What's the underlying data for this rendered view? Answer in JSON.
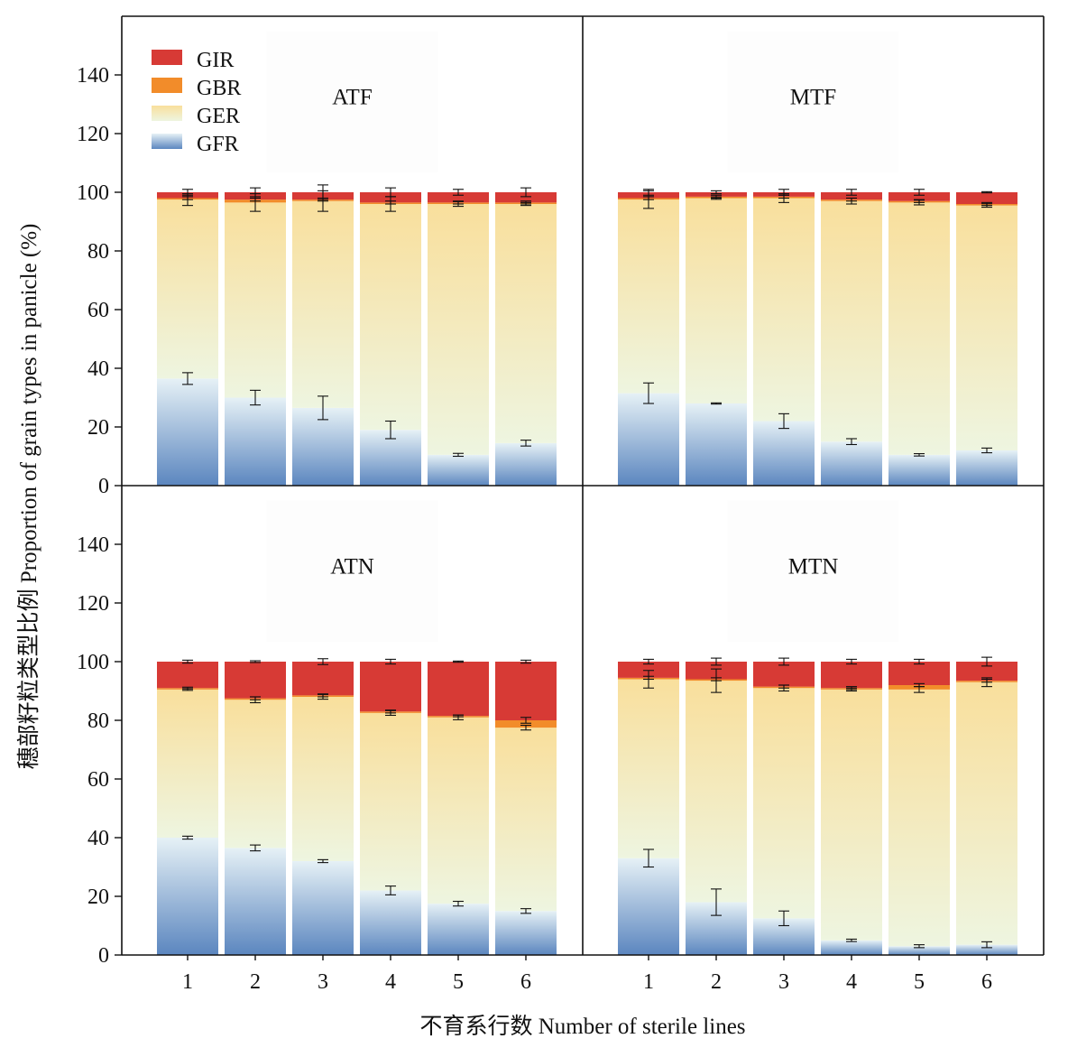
{
  "chart_data": {
    "type": "bar",
    "stacked": true,
    "ylabel": "穗部籽粒类型比例 Proportion of grain types in panicle (%)",
    "xlabel": "不育系行数 Number of sterile lines",
    "ylim": [
      0,
      160
    ],
    "yticks": [
      0,
      20,
      40,
      60,
      80,
      100,
      120,
      140
    ],
    "categories": [
      "1",
      "2",
      "3",
      "4",
      "5",
      "6"
    ],
    "legend": {
      "position": "top-left",
      "entries": [
        {
          "name": "GIR",
          "color": "#d73a35"
        },
        {
          "name": "GBR",
          "color": "#f28c2a"
        },
        {
          "name": "GER",
          "color": "#f7e3a8"
        },
        {
          "name": "GFR",
          "color": "#5b86bf"
        }
      ]
    },
    "colors": {
      "GFR_bottom": "#5b86bf",
      "GFR_top": "#e6f1f6",
      "GER_bottom": "#eef5e0",
      "GER_top": "#f9df9c",
      "GBR": "#f28c2a",
      "GIR": "#d73a35"
    },
    "panels": [
      {
        "title": "ATF",
        "series": [
          {
            "name": "GFR",
            "values": [
              36.5,
              30.0,
              26.5,
              19.0,
              10.5,
              14.5
            ],
            "errors": [
              2.0,
              2.5,
              4.0,
              3.0,
              0.5,
              1.0
            ]
          },
          {
            "name": "GER",
            "values": [
              61.0,
              66.5,
              70.5,
              77.0,
              85.5,
              81.5
            ],
            "errors": [
              2.0,
              3.0,
              3.5,
              2.5,
              0.8,
              0.5
            ]
          },
          {
            "name": "GBR",
            "values": [
              0.5,
              1.0,
              0.5,
              0.5,
              0.5,
              0.5
            ],
            "errors": [
              0.5,
              0.5,
              0.5,
              0.5,
              0.5,
              0.5
            ]
          },
          {
            "name": "GIR",
            "values": [
              2.0,
              2.5,
              2.5,
              3.5,
              3.5,
              3.5
            ],
            "errors": [
              1.0,
              1.5,
              2.5,
              1.5,
              1.0,
              1.5
            ]
          }
        ]
      },
      {
        "title": "MTF",
        "series": [
          {
            "name": "GFR",
            "values": [
              31.5,
              28.0,
              22.0,
              15.0,
              10.5,
              12.0
            ],
            "errors": [
              3.5,
              0.2,
              2.5,
              1.0,
              0.4,
              0.8
            ]
          },
          {
            "name": "GER",
            "values": [
              66.0,
              70.0,
              76.0,
              82.0,
              86.0,
              83.5
            ],
            "errors": [
              3.0,
              0.4,
              1.5,
              1.0,
              0.8,
              0.6
            ]
          },
          {
            "name": "GBR",
            "values": [
              0.5,
              0.5,
              0.5,
              0.5,
              0.5,
              0.5
            ],
            "errors": [
              0.5,
              0.5,
              0.5,
              0.5,
              0.5,
              0.5
            ]
          },
          {
            "name": "GIR",
            "values": [
              2.0,
              1.5,
              1.5,
              2.5,
              3.0,
              4.0
            ],
            "errors": [
              1.0,
              0.5,
              1.0,
              1.0,
              1.0,
              0.2
            ]
          }
        ]
      },
      {
        "title": "ATN",
        "series": [
          {
            "name": "GFR",
            "values": [
              40.0,
              36.5,
              32.0,
              22.0,
              17.5,
              15.0
            ],
            "errors": [
              0.5,
              1.0,
              0.5,
              1.5,
              0.8,
              0.8
            ]
          },
          {
            "name": "GER",
            "values": [
              50.5,
              50.5,
              56.0,
              60.5,
              63.5,
              62.5
            ],
            "errors": [
              0.3,
              1.0,
              0.8,
              0.8,
              0.8,
              0.8
            ]
          },
          {
            "name": "GBR",
            "values": [
              0.5,
              0.5,
              0.5,
              0.5,
              0.5,
              2.5
            ],
            "errors": [
              0.3,
              0.5,
              0.5,
              0.5,
              0.3,
              1.0
            ]
          },
          {
            "name": "GIR",
            "values": [
              9.0,
              12.5,
              11.5,
              17.0,
              18.5,
              20.0
            ],
            "errors": [
              0.5,
              0.3,
              1.0,
              0.8,
              0.2,
              0.5
            ]
          }
        ]
      },
      {
        "title": "MTN",
        "series": [
          {
            "name": "GFR",
            "values": [
              33.0,
              18.0,
              12.5,
              5.0,
              3.0,
              3.5
            ],
            "errors": [
              3.0,
              4.5,
              2.5,
              0.4,
              0.5,
              1.0
            ]
          },
          {
            "name": "GER",
            "values": [
              61.0,
              75.5,
              78.5,
              85.5,
              87.5,
              89.5
            ],
            "errors": [
              3.0,
              4.0,
              1.0,
              0.5,
              1.0,
              1.5
            ]
          },
          {
            "name": "GBR",
            "values": [
              0.5,
              0.5,
              0.5,
              0.5,
              1.5,
              0.5
            ],
            "errors": [
              0.5,
              0.5,
              0.5,
              0.5,
              0.5,
              0.5
            ]
          },
          {
            "name": "GIR",
            "values": [
              5.5,
              6.0,
              8.5,
              9.0,
              8.0,
              6.5
            ],
            "errors": [
              0.8,
              1.2,
              1.2,
              0.8,
              0.8,
              1.5
            ]
          }
        ]
      }
    ]
  }
}
